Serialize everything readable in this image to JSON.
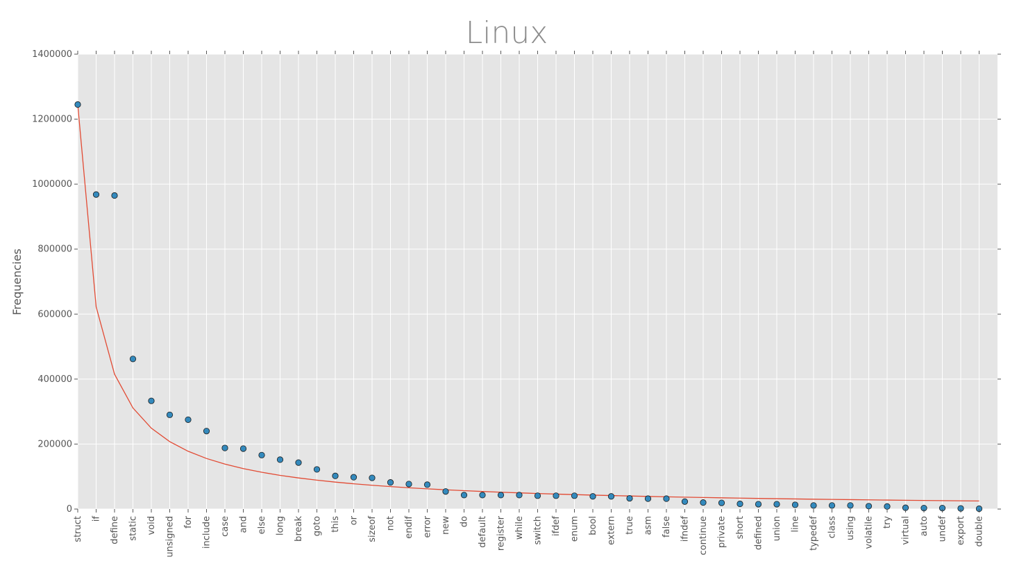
{
  "chart_data": {
    "type": "scatter",
    "title": "Linux",
    "ylabel": "Frequencies",
    "xlabel": "",
    "ylim": [
      0,
      1400000
    ],
    "yticks": [
      0,
      200000,
      400000,
      600000,
      800000,
      1000000,
      1200000,
      1400000
    ],
    "ytick_labels": [
      "0",
      "200000",
      "400000",
      "600000",
      "800000",
      "1000000",
      "1200000",
      "1400000"
    ],
    "grid": true,
    "legend": "none",
    "colors": {
      "background": "#e5e5e5",
      "grid": "#ffffff",
      "points": "#348abd",
      "fit_line": "#e24a33"
    },
    "categories": [
      "struct",
      "if",
      "define",
      "static",
      "void",
      "unsigned",
      "for",
      "include",
      "case",
      "and",
      "else",
      "long",
      "break",
      "goto",
      "this",
      "or",
      "sizeof",
      "not",
      "endif",
      "error",
      "new",
      "do",
      "default",
      "register",
      "while",
      "switch",
      "ifdef",
      "enum",
      "bool",
      "extern",
      "true",
      "asm",
      "false",
      "ifndef",
      "continue",
      "private",
      "short",
      "defined",
      "union",
      "line",
      "typedef",
      "class",
      "using",
      "volatile",
      "try",
      "virtual",
      "auto",
      "undef",
      "export",
      "double"
    ],
    "series": [
      {
        "type": "scatter",
        "values": [
          1245000,
          968000,
          965000,
          462000,
          333000,
          290000,
          275000,
          240000,
          188000,
          186000,
          166000,
          152000,
          143000,
          122000,
          102000,
          98000,
          96000,
          82000,
          77000,
          75000,
          54000,
          43000,
          43000,
          43000,
          43000,
          41000,
          41000,
          41000,
          39000,
          39000,
          33000,
          32000,
          32000,
          23000,
          20000,
          19000,
          16000,
          15000,
          15000,
          13000,
          11000,
          11000,
          11000,
          9000,
          8000,
          4000,
          3000,
          3000,
          2000,
          1000
        ]
      },
      {
        "type": "line",
        "values": [
          1245000,
          622500,
          415000,
          311250,
          249000,
          207500,
          177857,
          155625,
          138333,
          124500,
          113182,
          103750,
          95769,
          88929,
          83000,
          77813,
          73235,
          69167,
          65526,
          62250,
          59286,
          56591,
          54130,
          51875,
          49800,
          47885,
          46111,
          44464,
          42931,
          41500,
          40161,
          38906,
          37727,
          36618,
          35571,
          34583,
          33649,
          32763,
          31923,
          31125,
          30366,
          29643,
          28953,
          28295,
          27667,
          27065,
          26489,
          25938,
          25408,
          24900
        ]
      }
    ]
  }
}
